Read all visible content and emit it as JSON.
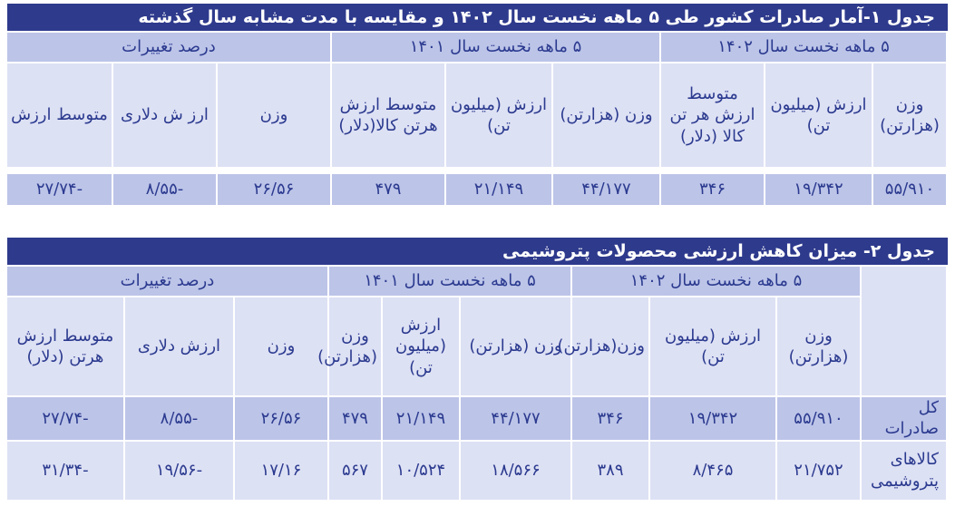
{
  "table1": {
    "title": "جدول ۱-آمار صادرات کشور طی ۵ ماهه نخست سال ۱۴۰۲ و مقایسه با مدت مشابه سال گذشته",
    "groups": [
      "۵ ماهه نخست سال ۱۴۰۲",
      "۵ ماهه نخست سال ۱۴۰۱",
      "درصد تغییرات"
    ],
    "headers": [
      "وزن (هزارتن)",
      "ارزش (میلیون تن)",
      "متوسط ارزش هر تن کالا (دلار)",
      "وزن (هزارتن)",
      "ارزش (میلیون تن)",
      "متوسط ارزش هرتن کالا(دلار)",
      "وزن",
      "ارز ش دلاری",
      "متوسط ارزش"
    ],
    "values": [
      "۵۵/۹۱۰",
      "۱۹/۳۴۲",
      "۳۴۶",
      "۴۴/۱۷۷",
      "۲۱/۱۴۹",
      "۴۷۹",
      "۲۶/۵۶",
      "-۸/۵۵",
      "-۲۷/۷۴"
    ]
  },
  "table2": {
    "title": "جدول ۲- میزان کاهش ارزشی محصولات پتروشیمی",
    "groups": [
      "۵ ماهه نخست سال ۱۴۰۲",
      "۵ ماهه نخست سال ۱۴۰۱",
      "درصد تغییرات"
    ],
    "headers": [
      "وزن (هزارتن)",
      "ارزش (میلیون تن)",
      "وزن(هزارتن)",
      "وزن (هزارتن)",
      "ارزش (میلیون تن)",
      "وزن (هزارتن)",
      "وزن",
      "ارزش دلاری",
      "متوسط ارزش هرتن (دلار)"
    ],
    "rows": [
      {
        "label": "کل صادرات",
        "values": [
          "۵۵/۹۱۰",
          "۱۹/۳۴۲",
          "۳۴۶",
          "۴۴/۱۷۷",
          "۲۱/۱۴۹",
          "۴۷۹",
          "۲۶/۵۶",
          "-۸/۵۵",
          "-۲۷/۷۴"
        ]
      },
      {
        "label": "کالاهای پتروشیمی",
        "values": [
          "۲۱/۷۵۲",
          "۸/۴۶۵",
          "۳۸۹",
          "۱۸/۵۶۶",
          "۱۰/۵۲۴",
          "۵۶۷",
          "۱۷/۱۶",
          "-۱۹/۵۶",
          "-۳۱/۳۴"
        ]
      }
    ]
  },
  "colors": {
    "title_bg": "#2e3a8c",
    "text": "#2b3a8f",
    "band_dark": "#bcc4e8",
    "band_light": "#dde1f4"
  }
}
